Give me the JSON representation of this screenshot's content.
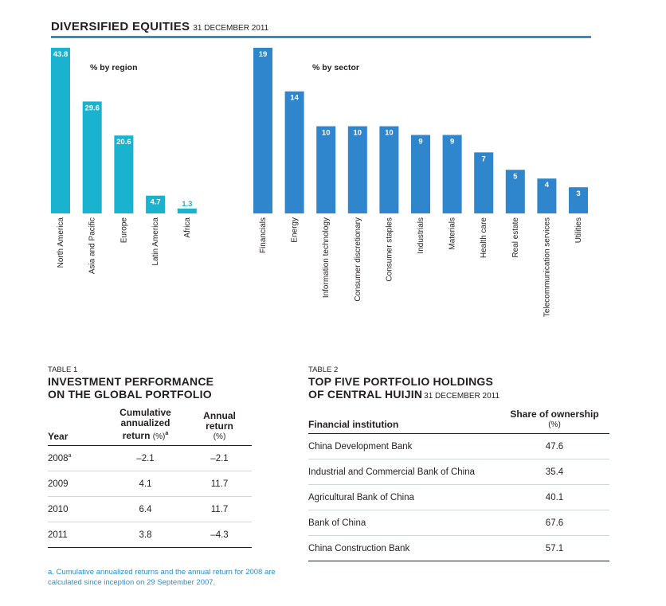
{
  "header": {
    "title": "DIVERSIFIED EQUITIES",
    "date": "31 DECEMBER 2011"
  },
  "colors": {
    "region": "#1ab3cf",
    "sector": "#2f86cc",
    "rule": "#2a8fd0",
    "label_text": "#ffffff"
  },
  "chart_data": [
    {
      "type": "bar",
      "title": "% by region",
      "categories": [
        "North America",
        "Asia and Pacific",
        "Europe",
        "Latin America",
        "Africa"
      ],
      "values": [
        43.8,
        29.6,
        20.6,
        4.7,
        1.3
      ],
      "value_labels": [
        "43.8",
        "29.6",
        "20.6",
        "4.7",
        "1.3"
      ],
      "ylim": [
        0,
        43.8
      ],
      "xlabel": "",
      "ylabel": ""
    },
    {
      "type": "bar",
      "title": "% by sector",
      "categories": [
        "Financials",
        "Energy",
        "Information technology",
        "Consumer discretionary",
        "Consumer staples",
        "Industrials",
        "Materials",
        "Health care",
        "Real estate",
        "Telecommunication services",
        "Utilities"
      ],
      "values": [
        19,
        14,
        10,
        10,
        10,
        9,
        9,
        7,
        5,
        4,
        3
      ],
      "value_labels": [
        "19",
        "14",
        "10",
        "10",
        "10",
        "9",
        "9",
        "7",
        "5",
        "4",
        "3"
      ],
      "ylim": [
        0,
        19
      ],
      "xlabel": "",
      "ylabel": ""
    }
  ],
  "table1": {
    "caption": "TABLE 1",
    "title_line1": "INVESTMENT PERFORMANCE",
    "title_line2": "ON THE GLOBAL PORTFOLIO",
    "col_year": "Year",
    "col_cum_line1": "Cumulative",
    "col_cum_line2": "annualized",
    "col_cum_line3": "return",
    "col_cum_unit": "(%)",
    "col_cum_sup": "a",
    "col_ann_line1": "Annual",
    "col_ann_line2": "return",
    "col_ann_unit": "(%)",
    "rows": [
      {
        "year": "2008",
        "sup": "a",
        "cum": "–2.1",
        "ann": "–2.1"
      },
      {
        "year": "2009",
        "sup": "",
        "cum": "4.1",
        "ann": "11.7"
      },
      {
        "year": "2010",
        "sup": "",
        "cum": "6.4",
        "ann": "11.7"
      },
      {
        "year": "2011",
        "sup": "",
        "cum": "3.8",
        "ann": "–4.3"
      }
    ],
    "footnote": "a. Cumulative annualized returns and the annual return for 2008 are calculated since inception on 29 September 2007."
  },
  "table2": {
    "caption": "TABLE 2",
    "title_line1": "TOP FIVE PORTFOLIO HOLDINGS",
    "title_line2": "OF CENTRAL HUIJIN",
    "title_date": "31 DECEMBER 2011",
    "col_inst": "Financial institution",
    "col_share": "Share of ownership",
    "col_share_unit": "(%)",
    "rows": [
      {
        "name": "China Development Bank",
        "share": "47.6"
      },
      {
        "name": "Industrial and Commercial Bank of China",
        "share": "35.4"
      },
      {
        "name": "Agricultural Bank of China",
        "share": "40.1"
      },
      {
        "name": "Bank of China",
        "share": "67.6"
      },
      {
        "name": "China Construction Bank",
        "share": "57.1"
      }
    ]
  }
}
